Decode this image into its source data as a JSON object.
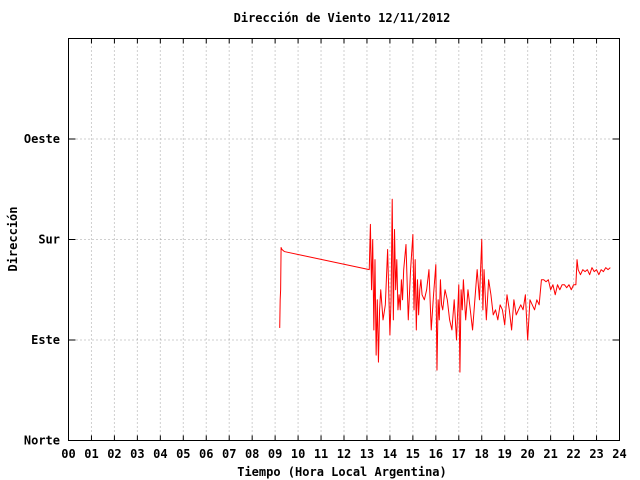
{
  "chart_data": {
    "type": "line",
    "title": "Dirección de Viento 12/11/2012",
    "xlabel": "Tiempo (Hora Local Argentina)",
    "ylabel": "Dirección",
    "xlim": [
      0,
      24
    ],
    "ylim": [
      0,
      4
    ],
    "x_tick_labels": [
      "00",
      "01",
      "02",
      "03",
      "04",
      "05",
      "06",
      "07",
      "08",
      "09",
      "10",
      "11",
      "12",
      "13",
      "14",
      "15",
      "16",
      "17",
      "18",
      "19",
      "20",
      "21",
      "22",
      "23",
      "24"
    ],
    "y_ticks": [
      {
        "value": 0,
        "label": "Norte"
      },
      {
        "value": 1,
        "label": "Este"
      },
      {
        "value": 2,
        "label": "Sur"
      },
      {
        "value": 3,
        "label": "Oeste"
      }
    ],
    "grid": true,
    "series_color": "#ff0000",
    "x": [
      9.2,
      9.22,
      9.24,
      9.26,
      9.3,
      9.4,
      13.1,
      13.15,
      13.2,
      13.25,
      13.3,
      13.35,
      13.4,
      13.45,
      13.5,
      13.55,
      13.6,
      13.65,
      13.7,
      13.8,
      13.9,
      14.0,
      14.05,
      14.1,
      14.15,
      14.2,
      14.25,
      14.3,
      14.35,
      14.4,
      14.45,
      14.5,
      14.55,
      14.6,
      14.7,
      14.8,
      14.9,
      15.0,
      15.05,
      15.1,
      15.15,
      15.2,
      15.25,
      15.3,
      15.35,
      15.4,
      15.5,
      15.6,
      15.7,
      15.8,
      15.9,
      16.0,
      16.05,
      16.1,
      16.15,
      16.2,
      16.25,
      16.3,
      16.4,
      16.5,
      16.6,
      16.7,
      16.8,
      16.9,
      17.0,
      17.05,
      17.1,
      17.15,
      17.2,
      17.3,
      17.4,
      17.5,
      17.6,
      17.7,
      17.8,
      17.9,
      18.0,
      18.05,
      18.1,
      18.2,
      18.3,
      18.4,
      18.5,
      18.6,
      18.7,
      18.8,
      18.9,
      19.0,
      19.1,
      19.2,
      19.3,
      19.4,
      19.5,
      19.6,
      19.7,
      19.8,
      19.9,
      20.0,
      20.1,
      20.2,
      20.3,
      20.4,
      20.5,
      20.6,
      20.7,
      20.8,
      20.9,
      21.0,
      21.1,
      21.2,
      21.3,
      21.4,
      21.5,
      21.6,
      21.7,
      21.8,
      21.9,
      22.0,
      22.1,
      22.15,
      22.2,
      22.3,
      22.4,
      22.5,
      22.6,
      22.7,
      22.8,
      22.9,
      23.0,
      23.1,
      23.2,
      23.3,
      23.4,
      23.5,
      23.6
    ],
    "values": [
      1.12,
      1.4,
      1.5,
      1.92,
      1.9,
      1.88,
      1.7,
      2.15,
      1.5,
      2.0,
      1.1,
      1.8,
      0.85,
      1.4,
      0.78,
      1.3,
      1.5,
      1.35,
      1.2,
      1.35,
      1.9,
      1.05,
      1.4,
      2.4,
      1.2,
      2.1,
      1.5,
      1.8,
      1.3,
      1.45,
      1.3,
      1.6,
      1.4,
      1.7,
      1.95,
      1.2,
      1.7,
      2.05,
      1.3,
      1.8,
      1.1,
      1.6,
      1.25,
      1.5,
      1.6,
      1.45,
      1.4,
      1.5,
      1.7,
      1.1,
      1.45,
      1.75,
      0.7,
      1.4,
      1.2,
      1.6,
      1.35,
      1.3,
      1.5,
      1.4,
      1.2,
      1.1,
      1.4,
      1.0,
      1.55,
      0.68,
      1.5,
      1.3,
      1.6,
      1.2,
      1.5,
      1.3,
      1.1,
      1.4,
      1.7,
      1.4,
      2.0,
      1.3,
      1.7,
      1.2,
      1.6,
      1.45,
      1.25,
      1.3,
      1.2,
      1.35,
      1.3,
      1.15,
      1.45,
      1.3,
      1.1,
      1.4,
      1.25,
      1.3,
      1.35,
      1.3,
      1.45,
      1.0,
      1.4,
      1.35,
      1.3,
      1.4,
      1.35,
      1.6,
      1.6,
      1.58,
      1.6,
      1.5,
      1.55,
      1.45,
      1.55,
      1.5,
      1.55,
      1.55,
      1.52,
      1.55,
      1.5,
      1.55,
      1.55,
      1.8,
      1.7,
      1.65,
      1.7,
      1.68,
      1.7,
      1.65,
      1.72,
      1.68,
      1.7,
      1.65,
      1.7,
      1.68,
      1.72,
      1.7,
      1.72
    ]
  }
}
